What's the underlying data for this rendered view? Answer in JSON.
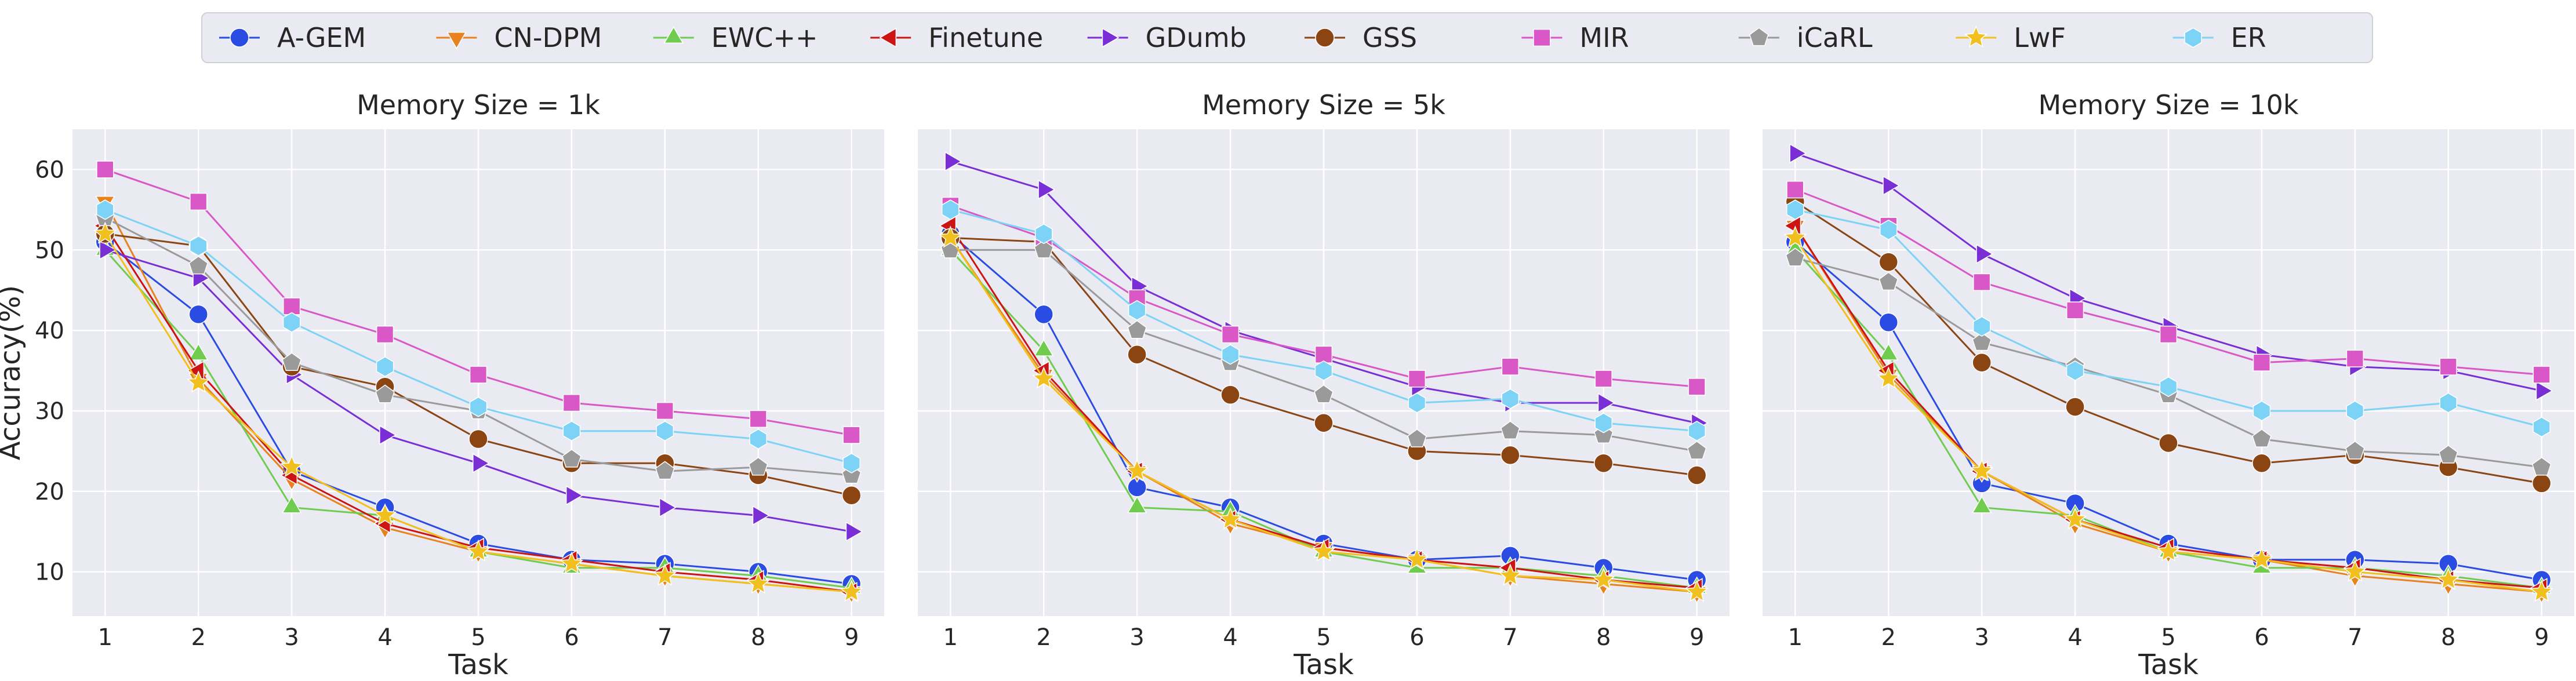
{
  "legend": {
    "placement": "top-center",
    "entries": [
      {
        "name": "A-GEM",
        "color": "#2a4ce3",
        "marker": "circle"
      },
      {
        "name": "CN-DPM",
        "color": "#e8821e",
        "marker": "triangle-down"
      },
      {
        "name": "EWC++",
        "color": "#6fcc4f",
        "marker": "triangle-up"
      },
      {
        "name": "Finetune",
        "color": "#cc1414",
        "marker": "triangle-left"
      },
      {
        "name": "GDumb",
        "color": "#7a2fd6",
        "marker": "triangle-right"
      },
      {
        "name": "GSS",
        "color": "#8b4513",
        "marker": "circle"
      },
      {
        "name": "MIR",
        "color": "#d957c6",
        "marker": "square"
      },
      {
        "name": "iCaRL",
        "color": "#9a9a9a",
        "marker": "pentagon"
      },
      {
        "name": "LwF",
        "color": "#f2c01e",
        "marker": "star"
      },
      {
        "name": "ER",
        "color": "#7dd3f5",
        "marker": "hexagon"
      }
    ]
  },
  "chart_data": [
    {
      "type": "line",
      "title": "Memory Size = 1k",
      "xlabel": "Task",
      "ylabel": "Accuracy(%)",
      "x": [
        1,
        2,
        3,
        4,
        5,
        6,
        7,
        8,
        9
      ],
      "xlim": [
        0.65,
        9.35
      ],
      "ylim": [
        4.5,
        65
      ],
      "yticks": [
        10,
        20,
        30,
        40,
        50,
        60
      ],
      "grid": true,
      "series": [
        {
          "name": "A-GEM",
          "values": [
            51,
            42,
            22.5,
            18,
            13.5,
            11.5,
            11,
            10,
            8.5
          ]
        },
        {
          "name": "CN-DPM",
          "values": [
            56,
            34,
            21.5,
            15.5,
            12.5,
            11,
            9.5,
            8.5,
            7.5
          ]
        },
        {
          "name": "EWC++",
          "values": [
            50,
            37,
            18,
            17,
            12.5,
            10.5,
            10.5,
            9.5,
            8
          ]
        },
        {
          "name": "Finetune",
          "values": [
            53,
            35,
            22,
            16,
            13,
            11.5,
            10,
            9,
            7.5
          ]
        },
        {
          "name": "GDumb",
          "values": [
            50,
            46.5,
            34.5,
            27,
            23.5,
            19.5,
            18,
            17,
            15
          ]
        },
        {
          "name": "GSS",
          "values": [
            52,
            50.5,
            35.5,
            33,
            26.5,
            23.5,
            23.5,
            22,
            19.5
          ]
        },
        {
          "name": "MIR",
          "values": [
            60,
            56,
            43,
            39.5,
            34.5,
            31,
            30,
            29,
            27
          ]
        },
        {
          "name": "iCaRL",
          "values": [
            54,
            48,
            36,
            32,
            30,
            24,
            22.5,
            23,
            22
          ]
        },
        {
          "name": "LwF",
          "values": [
            52,
            33.5,
            23,
            17,
            12.5,
            11,
            9.5,
            8.5,
            7.5
          ]
        },
        {
          "name": "ER",
          "values": [
            55,
            50.5,
            41,
            35.5,
            30.5,
            27.5,
            27.5,
            26.5,
            23.5
          ]
        }
      ]
    },
    {
      "type": "line",
      "title": "Memory Size = 5k",
      "xlabel": "Task",
      "ylabel": "",
      "x": [
        1,
        2,
        3,
        4,
        5,
        6,
        7,
        8,
        9
      ],
      "xlim": [
        0.65,
        9.35
      ],
      "ylim": [
        4.5,
        65
      ],
      "yticks": [],
      "grid": true,
      "series": [
        {
          "name": "A-GEM",
          "values": [
            52,
            42,
            20.5,
            18,
            13.5,
            11.5,
            12,
            10.5,
            9
          ]
        },
        {
          "name": "CN-DPM",
          "values": [
            51.5,
            34.5,
            22.5,
            16,
            13,
            11.5,
            9.5,
            8.5,
            7.5
          ]
        },
        {
          "name": "EWC++",
          "values": [
            50,
            37.5,
            18,
            17.5,
            12.5,
            10.5,
            10.5,
            9.5,
            8
          ]
        },
        {
          "name": "Finetune",
          "values": [
            53,
            35,
            22.5,
            16.5,
            13,
            11.5,
            10.5,
            9,
            8
          ]
        },
        {
          "name": "GDumb",
          "values": [
            61,
            57.5,
            45.5,
            40,
            36.5,
            33,
            31,
            31,
            28.5
          ]
        },
        {
          "name": "GSS",
          "values": [
            51.5,
            51,
            37,
            32,
            28.5,
            25,
            24.5,
            23.5,
            22
          ]
        },
        {
          "name": "MIR",
          "values": [
            55.5,
            51.5,
            44,
            39.5,
            37,
            34,
            35.5,
            34,
            33
          ]
        },
        {
          "name": "iCaRL",
          "values": [
            50,
            50,
            40,
            36,
            32,
            26.5,
            27.5,
            27,
            25
          ]
        },
        {
          "name": "LwF",
          "values": [
            51.5,
            34,
            22.5,
            16.5,
            12.5,
            11.5,
            9.5,
            9,
            7.5
          ]
        },
        {
          "name": "ER",
          "values": [
            55,
            52,
            42.5,
            37,
            35,
            31,
            31.5,
            28.5,
            27.5
          ]
        }
      ]
    },
    {
      "type": "line",
      "title": "Memory Size = 10k",
      "xlabel": "Task",
      "ylabel": "",
      "x": [
        1,
        2,
        3,
        4,
        5,
        6,
        7,
        8,
        9
      ],
      "xlim": [
        0.65,
        9.35
      ],
      "ylim": [
        4.5,
        65
      ],
      "yticks": [],
      "grid": true,
      "series": [
        {
          "name": "A-GEM",
          "values": [
            51,
            41,
            21,
            18.5,
            13.5,
            11.5,
            11.5,
            11,
            9
          ]
        },
        {
          "name": "CN-DPM",
          "values": [
            53,
            34.5,
            22.5,
            16,
            12.5,
            11.5,
            9.5,
            8.5,
            7.5
          ]
        },
        {
          "name": "EWC++",
          "values": [
            50,
            37,
            18,
            17,
            12.5,
            10.5,
            10.5,
            9.5,
            8
          ]
        },
        {
          "name": "Finetune",
          "values": [
            53,
            35,
            22.5,
            16.5,
            13,
            11.5,
            10.5,
            9,
            8
          ]
        },
        {
          "name": "GDumb",
          "values": [
            62,
            58,
            49.5,
            44,
            40.5,
            37,
            35.5,
            35,
            32.5
          ]
        },
        {
          "name": "GSS",
          "values": [
            56,
            48.5,
            36,
            30.5,
            26,
            23.5,
            24.5,
            23,
            21
          ]
        },
        {
          "name": "MIR",
          "values": [
            57.5,
            53,
            46,
            42.5,
            39.5,
            36,
            36.5,
            35.5,
            34.5
          ]
        },
        {
          "name": "iCaRL",
          "values": [
            49,
            46,
            38.5,
            35.5,
            32,
            26.5,
            25,
            24.5,
            23
          ]
        },
        {
          "name": "LwF",
          "values": [
            51.5,
            34,
            22.5,
            16.5,
            12.5,
            11.5,
            10,
            9,
            7.5
          ]
        },
        {
          "name": "ER",
          "values": [
            55,
            52.5,
            40.5,
            35,
            33,
            30,
            30,
            31,
            28
          ]
        }
      ]
    }
  ]
}
